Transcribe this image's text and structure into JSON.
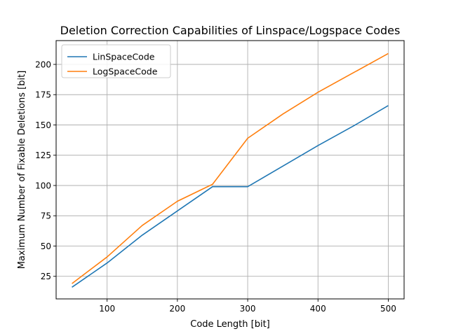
{
  "chart_data": {
    "type": "line",
    "title": "Deletion Correction Capabilities of Linspace/Logspace Codes",
    "xlabel": "Code Length [bit]",
    "ylabel": "Maximum Number of Fixable Deletions [bit]",
    "x": [
      50,
      100,
      150,
      200,
      250,
      300,
      350,
      400,
      450,
      500
    ],
    "xlim": [
      27.5,
      522.5
    ],
    "ylim": [
      6.35,
      219.65
    ],
    "xticks": [
      100,
      200,
      300,
      400,
      500
    ],
    "yticks": [
      25,
      50,
      75,
      100,
      125,
      150,
      175,
      200
    ],
    "grid": true,
    "legend_position": "upper-left",
    "series": [
      {
        "name": "LinSpaceCode",
        "color": "#1f77b4",
        "values": [
          16,
          36,
          59,
          79,
          99,
          99,
          116,
          133,
          149,
          166
        ]
      },
      {
        "name": "LogSpaceCode",
        "color": "#ff7f0e",
        "values": [
          19,
          41,
          67,
          87,
          101,
          139,
          159,
          177,
          193,
          209
        ]
      }
    ]
  }
}
